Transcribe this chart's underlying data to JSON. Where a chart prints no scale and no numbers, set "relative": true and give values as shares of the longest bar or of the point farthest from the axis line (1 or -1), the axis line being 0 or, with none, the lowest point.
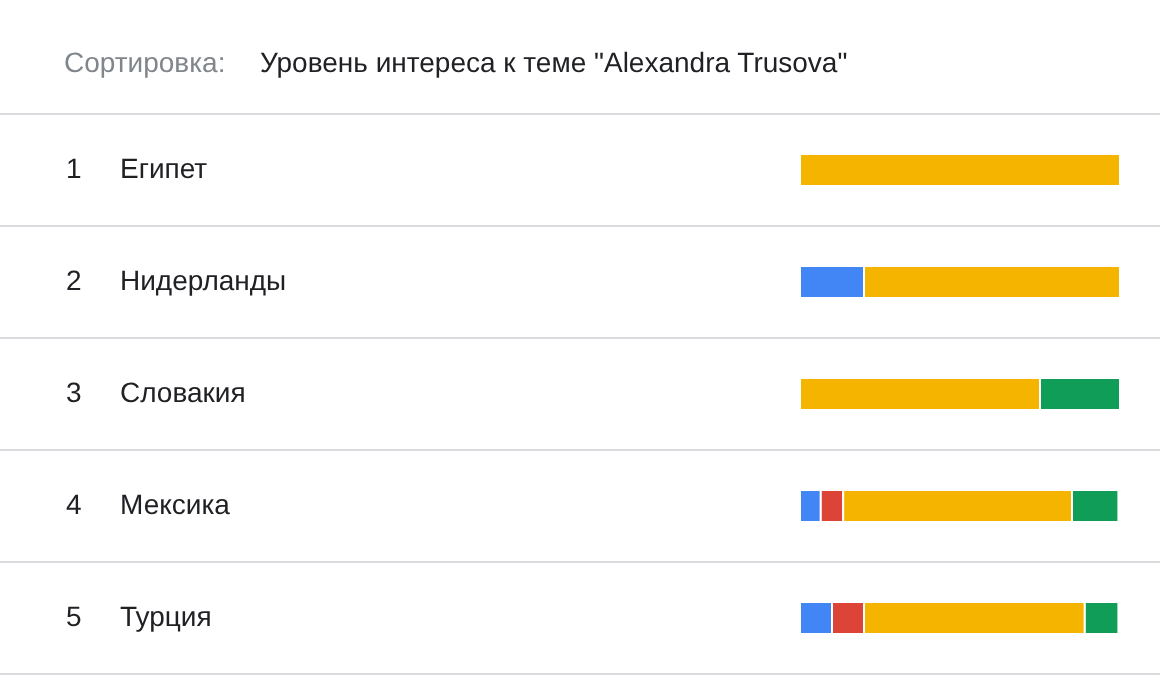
{
  "chart_data": {
    "type": "bar",
    "orientation": "horizontal",
    "stacked": true,
    "relative": true,
    "title": "Сортировка:",
    "subtitle": "Уровень интереса к теме \"Alexandra Trusova\"",
    "categories": [
      "Египет",
      "Нидерланды",
      "Словакия",
      "Мексика",
      "Турция"
    ],
    "annotations": [
      "1",
      "2",
      "3",
      "4",
      "5"
    ],
    "series": [
      {
        "color": "#4285f4",
        "values": [
          null,
          0.2,
          null,
          0.065,
          0.1
        ]
      },
      {
        "color": "#db4437",
        "values": [
          null,
          null,
          null,
          0.07,
          0.1
        ]
      },
      {
        "color": "#f4b400",
        "values": [
          1,
          0.8,
          0.75,
          0.715,
          0.69
        ]
      },
      {
        "color": "#0f9d58",
        "values": [
          null,
          null,
          0.25,
          0.145,
          0.105
        ]
      }
    ],
    "grid": "y"
  }
}
